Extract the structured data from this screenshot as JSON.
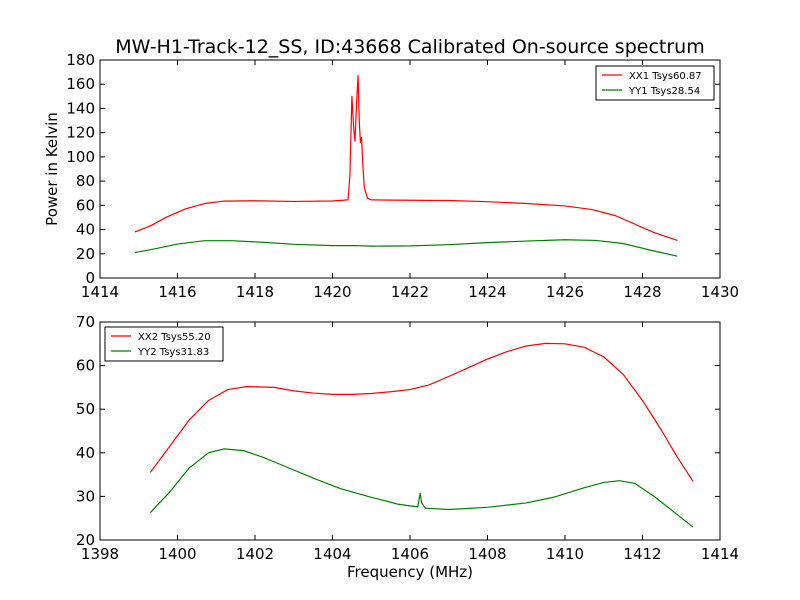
{
  "chart_data": [
    {
      "type": "line",
      "title": "MW-H1-Track-12_SS, ID:43668 Calibrated On-source spectrum",
      "xlabel": "",
      "ylabel": "Power in Kelvin",
      "xlim": [
        1414,
        1430
      ],
      "ylim": [
        0,
        180
      ],
      "xticks": [
        1414,
        1416,
        1418,
        1420,
        1422,
        1424,
        1426,
        1428,
        1430
      ],
      "yticks": [
        0,
        20,
        40,
        60,
        80,
        100,
        120,
        140,
        160,
        180
      ],
      "grid": false,
      "legend": "top-right",
      "series": [
        {
          "name": "XX1 Tsys60.87",
          "color": "#ff0000",
          "points": [
            [
              1414.9,
              38
            ],
            [
              1415.3,
              43
            ],
            [
              1415.7,
              50
            ],
            [
              1416.2,
              57
            ],
            [
              1416.7,
              61.5
            ],
            [
              1417.2,
              63.5
            ],
            [
              1418.0,
              63.8
            ],
            [
              1419.0,
              63.2
            ],
            [
              1420.0,
              63.6
            ],
            [
              1420.4,
              64.5
            ],
            [
              1420.45,
              85
            ],
            [
              1420.5,
              150
            ],
            [
              1420.55,
              122
            ],
            [
              1420.58,
              113
            ],
            [
              1420.63,
              150
            ],
            [
              1420.66,
              167
            ],
            [
              1420.69,
              130
            ],
            [
              1420.72,
              112
            ],
            [
              1420.75,
              116
            ],
            [
              1420.78,
              95
            ],
            [
              1420.82,
              75
            ],
            [
              1420.9,
              66
            ],
            [
              1421.0,
              64.5
            ],
            [
              1422.0,
              64.2
            ],
            [
              1423.0,
              64.0
            ],
            [
              1424.0,
              63.0
            ],
            [
              1425.0,
              61.5
            ],
            [
              1426.0,
              59.5
            ],
            [
              1426.7,
              56.5
            ],
            [
              1427.3,
              51.5
            ],
            [
              1427.8,
              44.5
            ],
            [
              1428.3,
              37.5
            ],
            [
              1428.9,
              31
            ]
          ]
        },
        {
          "name": "YY1 Tsys28.54",
          "color": "#008000",
          "points": [
            [
              1414.9,
              21
            ],
            [
              1415.4,
              24
            ],
            [
              1416.0,
              28
            ],
            [
              1416.7,
              30.8
            ],
            [
              1417.4,
              30.8
            ],
            [
              1418.2,
              29.5
            ],
            [
              1419.0,
              27.8
            ],
            [
              1420.0,
              26.7
            ],
            [
              1420.6,
              26.8
            ],
            [
              1421.0,
              26.3
            ],
            [
              1422.0,
              26.5
            ],
            [
              1423.0,
              27.5
            ],
            [
              1424.0,
              29.2
            ],
            [
              1425.0,
              30.5
            ],
            [
              1426.0,
              31.6
            ],
            [
              1426.8,
              31
            ],
            [
              1427.5,
              28.5
            ],
            [
              1428.2,
              23
            ],
            [
              1428.9,
              18
            ]
          ]
        }
      ]
    },
    {
      "type": "line",
      "title": "",
      "xlabel": "Frequency (MHz)",
      "ylabel": "",
      "xlim": [
        1398,
        1414
      ],
      "ylim": [
        20,
        70
      ],
      "xticks": [
        1398,
        1400,
        1402,
        1404,
        1406,
        1408,
        1410,
        1412,
        1414
      ],
      "yticks": [
        20,
        30,
        40,
        50,
        60,
        70
      ],
      "grid": false,
      "legend": "top-left",
      "series": [
        {
          "name": "XX2 Tsys55.20",
          "color": "#ff0000",
          "points": [
            [
              1399.3,
              35.5
            ],
            [
              1399.8,
              41.5
            ],
            [
              1400.3,
              47.5
            ],
            [
              1400.8,
              52
            ],
            [
              1401.3,
              54.5
            ],
            [
              1401.8,
              55.2
            ],
            [
              1402.5,
              55
            ],
            [
              1403.0,
              54.2
            ],
            [
              1403.5,
              53.7
            ],
            [
              1404.0,
              53.4
            ],
            [
              1404.5,
              53.4
            ],
            [
              1405.0,
              53.6
            ],
            [
              1405.5,
              54
            ],
            [
              1406.0,
              54.5
            ],
            [
              1406.5,
              55.6
            ],
            [
              1407.0,
              57.5
            ],
            [
              1407.5,
              59.5
            ],
            [
              1408.0,
              61.5
            ],
            [
              1408.5,
              63.2
            ],
            [
              1409.0,
              64.5
            ],
            [
              1409.5,
              65.1
            ],
            [
              1410.0,
              65
            ],
            [
              1410.5,
              64.2
            ],
            [
              1411.0,
              62
            ],
            [
              1411.5,
              58
            ],
            [
              1412.0,
              52
            ],
            [
              1412.5,
              45
            ],
            [
              1412.9,
              39
            ],
            [
              1413.3,
              33.5
            ]
          ]
        },
        {
          "name": "YY2 Tsys31.83",
          "color": "#008000",
          "points": [
            [
              1399.3,
              26.3
            ],
            [
              1399.8,
              31
            ],
            [
              1400.3,
              36.5
            ],
            [
              1400.8,
              40
            ],
            [
              1401.2,
              40.9
            ],
            [
              1401.7,
              40.5
            ],
            [
              1402.2,
              39
            ],
            [
              1402.8,
              36.8
            ],
            [
              1403.5,
              34.2
            ],
            [
              1404.2,
              31.8
            ],
            [
              1405.0,
              29.8
            ],
            [
              1405.7,
              28.2
            ],
            [
              1406.2,
              27.6
            ],
            [
              1406.26,
              30.7
            ],
            [
              1406.3,
              28.5
            ],
            [
              1406.4,
              27.3
            ],
            [
              1407.0,
              27
            ],
            [
              1408.0,
              27.5
            ],
            [
              1409.0,
              28.5
            ],
            [
              1409.7,
              29.8
            ],
            [
              1410.5,
              32
            ],
            [
              1411.0,
              33.2
            ],
            [
              1411.4,
              33.6
            ],
            [
              1411.8,
              33
            ],
            [
              1412.3,
              30
            ],
            [
              1412.8,
              26.5
            ],
            [
              1413.3,
              23
            ]
          ]
        }
      ]
    }
  ]
}
